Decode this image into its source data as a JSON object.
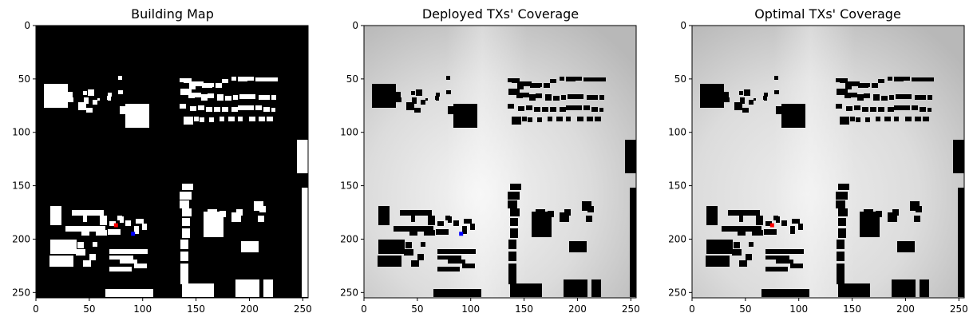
{
  "chart_data": [
    {
      "type": "heatmap",
      "title": "Building Map",
      "xlim": [
        0,
        255
      ],
      "ylim": [
        255,
        0
      ],
      "xticks": [
        0,
        50,
        100,
        150,
        200,
        250
      ],
      "yticks": [
        0,
        50,
        100,
        150,
        200,
        250
      ],
      "grid": false,
      "colormap": "black background, white buildings",
      "markers": [
        {
          "x": 75,
          "y": 187,
          "color": "#ff0000"
        },
        {
          "x": 91,
          "y": 195,
          "color": "#0000ff"
        }
      ]
    },
    {
      "type": "heatmap",
      "title": "Deployed TXs' Coverage",
      "xlim": [
        0,
        255
      ],
      "ylim": [
        255,
        0
      ],
      "xticks": [
        0,
        50,
        100,
        150,
        200,
        250
      ],
      "yticks": [
        0,
        50,
        100,
        150,
        200,
        250
      ],
      "grid": false,
      "colormap": "grayscale coverage, black buildings",
      "markers": [
        {
          "x": 91,
          "y": 195,
          "color": "#0000ff"
        }
      ]
    },
    {
      "type": "heatmap",
      "title": "Optimal TXs' Coverage",
      "xlim": [
        0,
        255
      ],
      "ylim": [
        255,
        0
      ],
      "xticks": [
        0,
        50,
        100,
        150,
        200,
        250
      ],
      "yticks": [
        0,
        50,
        100,
        150,
        200,
        250
      ],
      "grid": false,
      "colormap": "grayscale coverage, black buildings",
      "markers": [
        {
          "x": 75,
          "y": 187,
          "color": "#ff0000"
        }
      ]
    }
  ],
  "buildings": [
    [
      55,
      105,
      30,
      30
    ],
    [
      98,
      128,
      10,
      10
    ],
    [
      104,
      114,
      5,
      5
    ],
    [
      110,
      112,
      8,
      8
    ],
    [
      105,
      122,
      6,
      8
    ],
    [
      83,
      115,
      8,
      7
    ],
    [
      78,
      122,
      14,
      6
    ],
    [
      108,
      135,
      8,
      6
    ],
    [
      116,
      125,
      6,
      6
    ],
    [
      122,
      123,
      3,
      3
    ],
    [
      148,
      95,
      5,
      5
    ],
    [
      148,
      113,
      6,
      5
    ],
    [
      135,
      116,
      5,
      5
    ],
    [
      134,
      120,
      5,
      5
    ],
    [
      135,
      122,
      4,
      4
    ],
    [
      150,
      133,
      10,
      10
    ],
    [
      157,
      130,
      30,
      22
    ],
    [
      157,
      152,
      30,
      8
    ],
    [
      168,
      140,
      5,
      5
    ],
    [
      164,
      152,
      8,
      5
    ],
    [
      225,
      98,
      5,
      5
    ],
    [
      230,
      98,
      10,
      6
    ],
    [
      237,
      104,
      8,
      8
    ],
    [
      240,
      102,
      15,
      6
    ],
    [
      253,
      104,
      13,
      6
    ],
    [
      260,
      104,
      8,
      5
    ],
    [
      270,
      104,
      8,
      6
    ],
    [
      278,
      99,
      8,
      5
    ],
    [
      290,
      96,
      6,
      5
    ],
    [
      298,
      96,
      12,
      6
    ],
    [
      310,
      96,
      8,
      5
    ],
    [
      320,
      97,
      10,
      5
    ],
    [
      330,
      97,
      10,
      5
    ],
    [
      340,
      97,
      8,
      5
    ],
    [
      226,
      111,
      5,
      8
    ],
    [
      230,
      111,
      10,
      8
    ],
    [
      236,
      117,
      8,
      6
    ],
    [
      240,
      116,
      12,
      6
    ],
    [
      252,
      118,
      8,
      8
    ],
    [
      260,
      117,
      8,
      6
    ],
    [
      272,
      118,
      8,
      8
    ],
    [
      282,
      120,
      8,
      6
    ],
    [
      292,
      119,
      6,
      6
    ],
    [
      300,
      118,
      10,
      6
    ],
    [
      310,
      118,
      10,
      6
    ],
    [
      324,
      119,
      6,
      6
    ],
    [
      330,
      119,
      8,
      6
    ],
    [
      340,
      119,
      6,
      6
    ],
    [
      225,
      130,
      8,
      6
    ],
    [
      238,
      133,
      8,
      6
    ],
    [
      248,
      132,
      8,
      6
    ],
    [
      258,
      134,
      8,
      6
    ],
    [
      268,
      134,
      8,
      6
    ],
    [
      278,
      134,
      8,
      6
    ],
    [
      290,
      134,
      8,
      6
    ],
    [
      298,
      132,
      10,
      6
    ],
    [
      308,
      132,
      10,
      6
    ],
    [
      320,
      132,
      8,
      6
    ],
    [
      330,
      134,
      8,
      6
    ],
    [
      340,
      135,
      5,
      5
    ],
    [
      230,
      146,
      12,
      10
    ],
    [
      243,
      146,
      6,
      6
    ],
    [
      250,
      147,
      6,
      6
    ],
    [
      262,
      147,
      6,
      6
    ],
    [
      275,
      146,
      6,
      6
    ],
    [
      286,
      146,
      8,
      6
    ],
    [
      298,
      146,
      6,
      6
    ],
    [
      312,
      146,
      8,
      6
    ],
    [
      324,
      146,
      8,
      6
    ],
    [
      334,
      146,
      8,
      6
    ],
    [
      372,
      175,
      15,
      42
    ],
    [
      228,
      230,
      14,
      8
    ],
    [
      225,
      240,
      15,
      10
    ],
    [
      225,
      251,
      12,
      10
    ],
    [
      228,
      261,
      12,
      10
    ],
    [
      228,
      273,
      10,
      10
    ],
    [
      228,
      286,
      10,
      12
    ],
    [
      226,
      300,
      10,
      12
    ],
    [
      226,
      315,
      10,
      12
    ],
    [
      226,
      330,
      10,
      14
    ],
    [
      226,
      344,
      10,
      12
    ],
    [
      63,
      258,
      14,
      24
    ],
    [
      90,
      263,
      40,
      7
    ],
    [
      104,
      270,
      5,
      8
    ],
    [
      125,
      270,
      9,
      12
    ],
    [
      137,
      277,
      8,
      6
    ],
    [
      147,
      270,
      6,
      6
    ],
    [
      82,
      283,
      50,
      7
    ],
    [
      102,
      288,
      10,
      7
    ],
    [
      120,
      288,
      14,
      7
    ],
    [
      135,
      287,
      16,
      7
    ],
    [
      150,
      271,
      5,
      8
    ],
    [
      157,
      276,
      7,
      7
    ],
    [
      170,
      274,
      10,
      6
    ],
    [
      168,
      283,
      6,
      10
    ],
    [
      178,
      280,
      6,
      8
    ],
    [
      63,
      300,
      33,
      18
    ],
    [
      62,
      320,
      30,
      14
    ],
    [
      97,
      303,
      8,
      8
    ],
    [
      95,
      312,
      12,
      8
    ],
    [
      104,
      326,
      10,
      8
    ],
    [
      112,
      318,
      8,
      8
    ],
    [
      116,
      303,
      6,
      6
    ],
    [
      137,
      312,
      48,
      6
    ],
    [
      137,
      320,
      30,
      5
    ],
    [
      150,
      325,
      22,
      5
    ],
    [
      137,
      334,
      28,
      6
    ],
    [
      168,
      330,
      16,
      6
    ],
    [
      132,
      362,
      60,
      10
    ],
    [
      255,
      265,
      25,
      32
    ],
    [
      260,
      262,
      12,
      8
    ],
    [
      275,
      264,
      8,
      8
    ],
    [
      290,
      266,
      12,
      12
    ],
    [
      296,
      262,
      8,
      8
    ],
    [
      318,
      252,
      12,
      12
    ],
    [
      325,
      258,
      8,
      8
    ],
    [
      323,
      270,
      8,
      8
    ],
    [
      302,
      302,
      22,
      14
    ],
    [
      228,
      355,
      40,
      17
    ],
    [
      295,
      350,
      30,
      22
    ],
    [
      330,
      350,
      12,
      22
    ],
    [
      378,
      235,
      10,
      137
    ]
  ]
}
